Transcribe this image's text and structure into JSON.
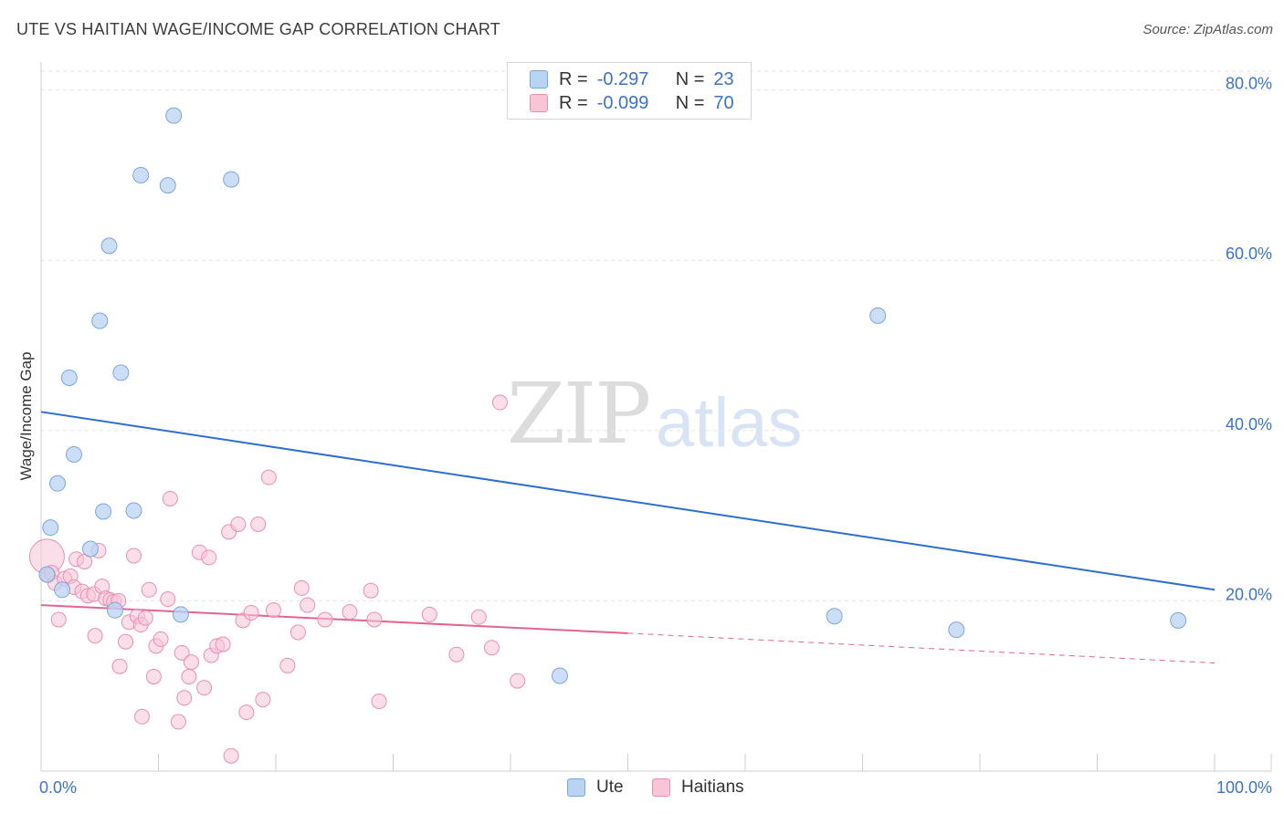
{
  "header": {
    "title": "UTE VS HAITIAN WAGE/INCOME GAP CORRELATION CHART",
    "source": "Source: ZipAtlas.com"
  },
  "legend": {
    "ute": {
      "r_label": "R =",
      "r_value": "-0.297",
      "n_label": "N =",
      "n_value": "23"
    },
    "haitians": {
      "r_label": "R =",
      "r_value": "-0.099",
      "n_label": "N =",
      "n_value": "70"
    }
  },
  "watermark": {
    "zip": "ZIP",
    "atlas": "atlas"
  },
  "colors": {
    "ute_fill": "#b9d3f2",
    "ute_stroke": "#7aa7de",
    "ute_line": "#2e6fce",
    "haitian_fill": "#f7c5d6",
    "haitian_stroke": "#eb8fae",
    "haitian_line": "#e2648f",
    "tick_label": "#3a73c9"
  },
  "chart_data": {
    "type": "scatter",
    "title": "UTE VS HAITIAN WAGE/INCOME GAP CORRELATION CHART",
    "xlabel": "",
    "ylabel": "Wage/Income Gap",
    "xlim": [
      0,
      100
    ],
    "ylim": [
      0,
      82
    ],
    "x_tick_labels": [
      "0.0%",
      "100.0%"
    ],
    "y_ticks": [
      20,
      40,
      60,
      80
    ],
    "y_tick_labels": [
      "20.0%",
      "40.0%",
      "60.0%",
      "80.0%"
    ],
    "grid": true,
    "legend_position": "top-center",
    "series": [
      {
        "name": "Ute",
        "points": [
          [
            0.5,
            23.1
          ],
          [
            0.8,
            28.6
          ],
          [
            1.4,
            33.8
          ],
          [
            1.8,
            21.3
          ],
          [
            2.4,
            46.2
          ],
          [
            2.8,
            37.2
          ],
          [
            4.2,
            26.1
          ],
          [
            5.0,
            52.9
          ],
          [
            5.3,
            30.5
          ],
          [
            5.8,
            61.7
          ],
          [
            6.3,
            18.9
          ],
          [
            6.8,
            46.8
          ],
          [
            7.9,
            30.6
          ],
          [
            8.5,
            70.0
          ],
          [
            10.8,
            68.8
          ],
          [
            11.3,
            77.0
          ],
          [
            11.9,
            18.4
          ],
          [
            16.2,
            69.5
          ],
          [
            44.2,
            11.2
          ],
          [
            67.6,
            18.2
          ],
          [
            71.3,
            53.5
          ],
          [
            78.0,
            16.6
          ],
          [
            96.9,
            17.7
          ]
        ],
        "trend": {
          "x": [
            0,
            100
          ],
          "y": [
            42.2,
            21.3
          ]
        }
      },
      {
        "name": "Haitians",
        "points": [
          [
            0.5,
            25.2
          ],
          [
            0.6,
            23.0
          ],
          [
            0.9,
            23.3
          ],
          [
            1.2,
            22.1
          ],
          [
            1.5,
            17.8
          ],
          [
            2.0,
            22.6
          ],
          [
            2.5,
            22.9
          ],
          [
            2.8,
            21.6
          ],
          [
            3.0,
            24.9
          ],
          [
            3.5,
            21.1
          ],
          [
            3.7,
            24.6
          ],
          [
            4.0,
            20.6
          ],
          [
            4.5,
            20.8
          ],
          [
            4.6,
            15.9
          ],
          [
            4.9,
            25.9
          ],
          [
            5.2,
            21.7
          ],
          [
            5.5,
            20.3
          ],
          [
            5.9,
            20.1
          ],
          [
            6.2,
            19.9
          ],
          [
            6.6,
            20.0
          ],
          [
            6.7,
            12.3
          ],
          [
            7.2,
            15.2
          ],
          [
            7.5,
            17.5
          ],
          [
            7.9,
            25.3
          ],
          [
            8.2,
            18.2
          ],
          [
            8.5,
            17.2
          ],
          [
            8.6,
            6.4
          ],
          [
            8.9,
            18.0
          ],
          [
            9.2,
            21.3
          ],
          [
            9.6,
            11.1
          ],
          [
            9.8,
            14.7
          ],
          [
            10.2,
            15.5
          ],
          [
            10.8,
            20.2
          ],
          [
            11.0,
            32.0
          ],
          [
            11.7,
            5.8
          ],
          [
            12.0,
            13.9
          ],
          [
            12.2,
            8.6
          ],
          [
            12.6,
            11.1
          ],
          [
            12.8,
            12.8
          ],
          [
            13.5,
            25.7
          ],
          [
            13.9,
            9.8
          ],
          [
            14.3,
            25.1
          ],
          [
            14.5,
            13.6
          ],
          [
            15.0,
            14.7
          ],
          [
            15.5,
            14.9
          ],
          [
            16.0,
            28.1
          ],
          [
            16.2,
            1.8
          ],
          [
            16.8,
            29.0
          ],
          [
            17.2,
            17.7
          ],
          [
            17.5,
            6.9
          ],
          [
            17.9,
            18.6
          ],
          [
            18.5,
            29.0
          ],
          [
            18.9,
            8.4
          ],
          [
            19.4,
            34.5
          ],
          [
            19.8,
            18.9
          ],
          [
            21.0,
            12.4
          ],
          [
            21.9,
            16.3
          ],
          [
            22.2,
            21.5
          ],
          [
            22.7,
            19.5
          ],
          [
            24.2,
            17.8
          ],
          [
            26.3,
            18.7
          ],
          [
            28.1,
            21.2
          ],
          [
            28.4,
            17.8
          ],
          [
            28.8,
            8.2
          ],
          [
            33.1,
            18.4
          ],
          [
            35.4,
            13.7
          ],
          [
            37.3,
            18.1
          ],
          [
            38.4,
            14.5
          ],
          [
            39.1,
            43.3
          ],
          [
            40.6,
            10.6
          ]
        ],
        "trend": {
          "x": [
            0,
            50
          ],
          "y": [
            19.5,
            16.2
          ],
          "dashed_x": [
            50,
            100
          ],
          "dashed_y": [
            16.2,
            12.7
          ]
        }
      }
    ]
  }
}
